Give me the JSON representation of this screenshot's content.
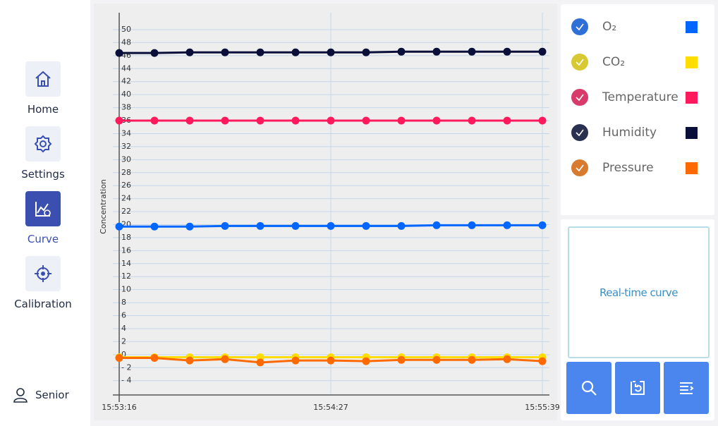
{
  "nav": {
    "items": [
      "Home",
      "Settings",
      "Curve",
      "Calibration"
    ],
    "user": "Senior"
  },
  "panel": {
    "button": "Real-time curve"
  },
  "chart_data": {
    "type": "line",
    "y_label": "Concentration",
    "categories": [
      "15:53:16",
      null,
      null,
      null,
      null,
      null,
      "15:54:27",
      null,
      null,
      null,
      null,
      null,
      "15:55:39"
    ],
    "ylim": [
      -6.2,
      52.6
    ],
    "yticks": [
      {
        "value": -4,
        "label": "- 4"
      },
      {
        "value": -2,
        "label": "- 2"
      },
      0,
      2,
      4,
      6,
      8,
      10,
      12,
      14,
      16,
      18,
      20,
      22,
      24,
      26,
      28,
      30,
      32,
      34,
      36,
      38,
      40,
      42,
      44,
      46,
      48,
      50
    ],
    "grid": true,
    "series": [
      {
        "name": "O₂",
        "color": "#0066ff",
        "values": [
          19.7,
          19.7,
          19.7,
          19.8,
          19.8,
          19.8,
          19.8,
          19.8,
          19.8,
          19.9,
          19.9,
          19.9,
          19.9
        ]
      },
      {
        "name": "CO₂",
        "color": "#ffdd00",
        "values": [
          -0.4,
          -0.4,
          -0.4,
          -0.4,
          -0.4,
          -0.4,
          -0.4,
          -0.4,
          -0.4,
          -0.4,
          -0.4,
          -0.4,
          -0.4
        ]
      },
      {
        "name": "Temperature",
        "color": "#ff1a5e",
        "values": [
          36.0,
          36.0,
          36.0,
          36.0,
          36.0,
          36.0,
          36.0,
          36.0,
          36.0,
          36.0,
          36.0,
          36.0,
          36.0
        ]
      },
      {
        "name": "Humidity",
        "color": "#0a0f3a",
        "values": [
          46.4,
          46.4,
          46.5,
          46.5,
          46.5,
          46.5,
          46.5,
          46.5,
          46.6,
          46.6,
          46.6,
          46.6,
          46.6
        ]
      },
      {
        "name": "Pressure",
        "color": "#ff6a00",
        "values": [
          -0.5,
          -0.5,
          -0.9,
          -0.7,
          -1.2,
          -0.9,
          -0.9,
          -1.0,
          -0.8,
          -0.8,
          -0.8,
          -0.7,
          -1.0
        ]
      }
    ]
  }
}
